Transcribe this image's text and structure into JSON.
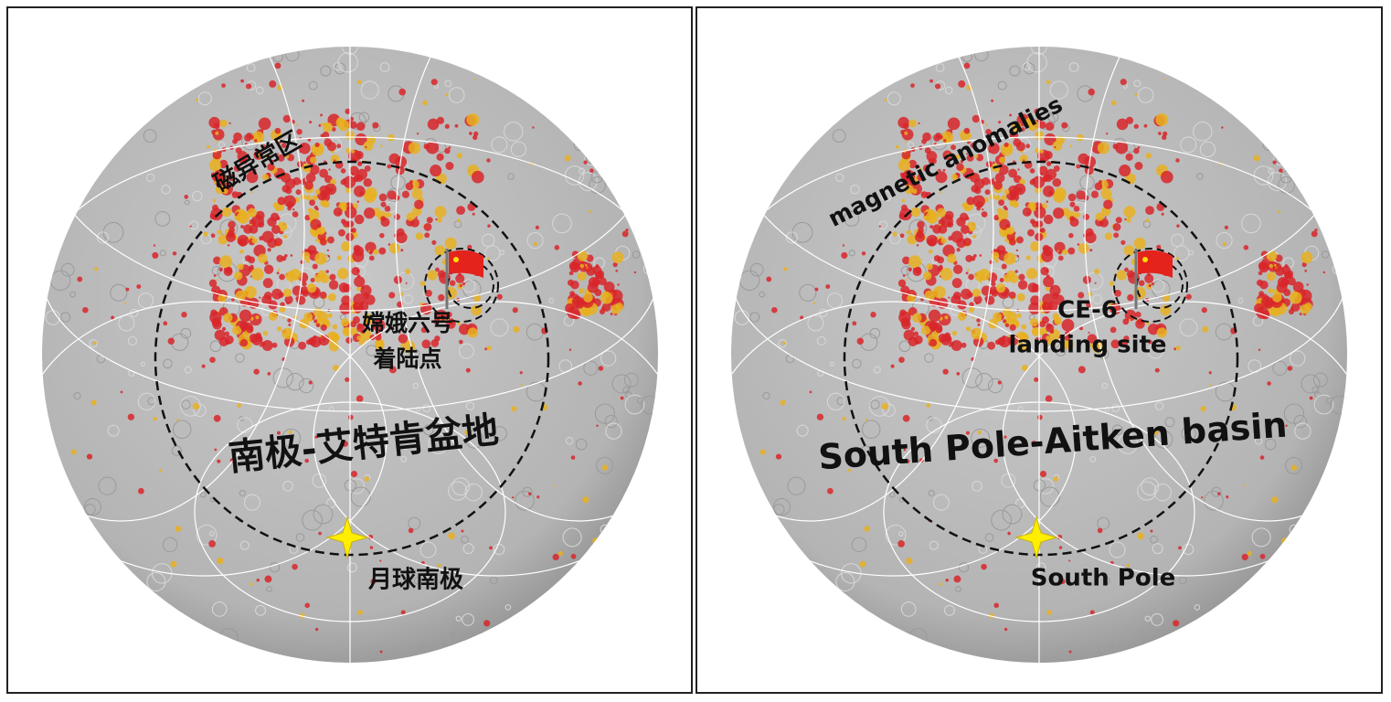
{
  "panels": [
    {
      "labels": {
        "region": "磁异常区",
        "landing_site": [
          "嫦娥六号",
          "着陆点"
        ],
        "basin": "南极-艾特肯盆地",
        "pole": "月球南极"
      }
    },
    {
      "labels": {
        "region": "magnetic anomalies",
        "landing_site": [
          "CE-6",
          "landing site"
        ],
        "basin": "South Pole-Aitken basin",
        "pole": "South Pole"
      }
    }
  ]
}
